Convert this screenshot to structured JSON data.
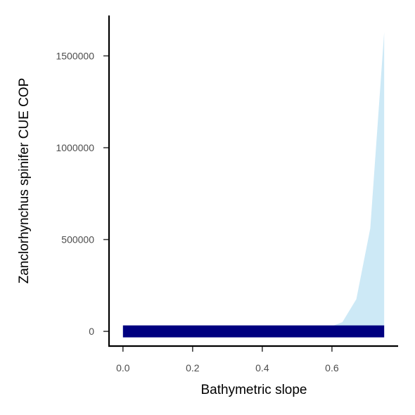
{
  "chart_data": {
    "type": "area",
    "title": "",
    "xlabel": "Bathymetric slope",
    "ylabel": "Zanclorhynchus spinifer  CUE COP",
    "xlim": [
      -0.04,
      0.79
    ],
    "ylim": [
      -80000,
      1720000
    ],
    "x_ticks": [
      0.0,
      0.2,
      0.4,
      0.6
    ],
    "x_tick_labels": [
      "0.0",
      "0.2",
      "0.4",
      "0.6"
    ],
    "y_ticks": [
      0,
      500000,
      1000000,
      1500000
    ],
    "y_tick_labels": [
      "0",
      "500000",
      "1000000",
      "1500000"
    ],
    "grid": false,
    "legend": "none",
    "series": [
      {
        "role": "uncertainty-band",
        "color": "#cde9f6",
        "x": [
          0.0,
          0.6,
          0.63,
          0.67,
          0.71,
          0.75
        ],
        "upper": [
          28000,
          28000,
          50000,
          175000,
          560000,
          1630000
        ],
        "lower": [
          -28000,
          -28000,
          -28000,
          -28000,
          -28000,
          -28000
        ]
      },
      {
        "role": "line",
        "color": "#000080",
        "x": [
          0.0,
          0.75
        ],
        "y": [
          0,
          0
        ]
      }
    ]
  }
}
